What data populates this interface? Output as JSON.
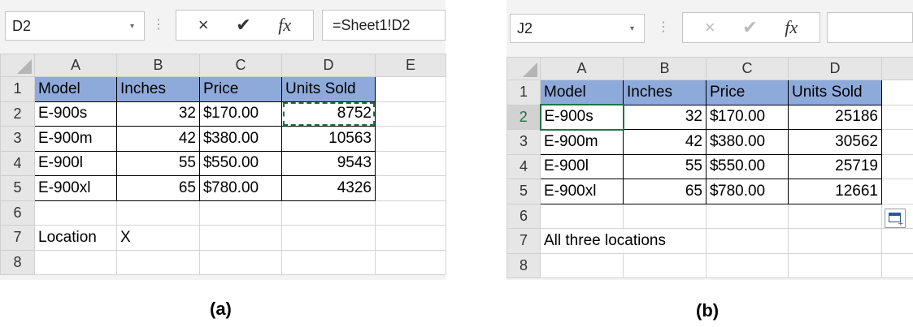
{
  "panel_a": {
    "caption": "(a)",
    "name_box": "D2",
    "formula": "=Sheet1!D2",
    "columns": [
      "A",
      "B",
      "C",
      "D",
      "E"
    ],
    "rows": [
      {
        "num": "1",
        "cells": [
          "Model",
          "Inches",
          "Price",
          "Units Sold",
          ""
        ]
      },
      {
        "num": "2",
        "cells": [
          "E-900s",
          "32",
          "170.00",
          "8752",
          ""
        ]
      },
      {
        "num": "3",
        "cells": [
          "E-900m",
          "42",
          "380.00",
          "10563",
          ""
        ]
      },
      {
        "num": "4",
        "cells": [
          "E-900l",
          "55",
          "550.00",
          "9543",
          ""
        ]
      },
      {
        "num": "5",
        "cells": [
          "E-900xl",
          "65",
          "780.00",
          "4326",
          ""
        ]
      },
      {
        "num": "6",
        "cells": [
          "",
          "",
          "",
          "",
          ""
        ]
      },
      {
        "num": "7",
        "cells": [
          "Location",
          "X",
          "",
          "",
          ""
        ]
      },
      {
        "num": "8",
        "cells": [
          "",
          "",
          "",
          "",
          ""
        ]
      }
    ]
  },
  "panel_b": {
    "caption": "(b)",
    "name_box": "J2",
    "formula": "",
    "columns": [
      "A",
      "B",
      "C",
      "D"
    ],
    "rows": [
      {
        "num": "1",
        "cells": [
          "Model",
          "Inches",
          "Price",
          "Units Sold"
        ]
      },
      {
        "num": "2",
        "cells": [
          "E-900s",
          "32",
          "170.00",
          "25186"
        ]
      },
      {
        "num": "3",
        "cells": [
          "E-900m",
          "42",
          "380.00",
          "30562"
        ]
      },
      {
        "num": "4",
        "cells": [
          "E-900l",
          "55",
          "550.00",
          "25719"
        ]
      },
      {
        "num": "5",
        "cells": [
          "E-900xl",
          "65",
          "780.00",
          "12661"
        ]
      },
      {
        "num": "6",
        "cells": [
          "",
          "",
          "",
          ""
        ]
      },
      {
        "num": "7",
        "cells": [
          "All three locations",
          "",
          "",
          ""
        ]
      },
      {
        "num": "8",
        "cells": [
          "",
          "",
          "",
          ""
        ]
      }
    ]
  },
  "currency_symbol": "$",
  "icons": {
    "cancel": "×",
    "confirm": "✔",
    "function": "fx",
    "caret": "▾",
    "dots": "⋮"
  },
  "colors": {
    "header_fill": "#8eaadb",
    "selection": "#217346"
  }
}
